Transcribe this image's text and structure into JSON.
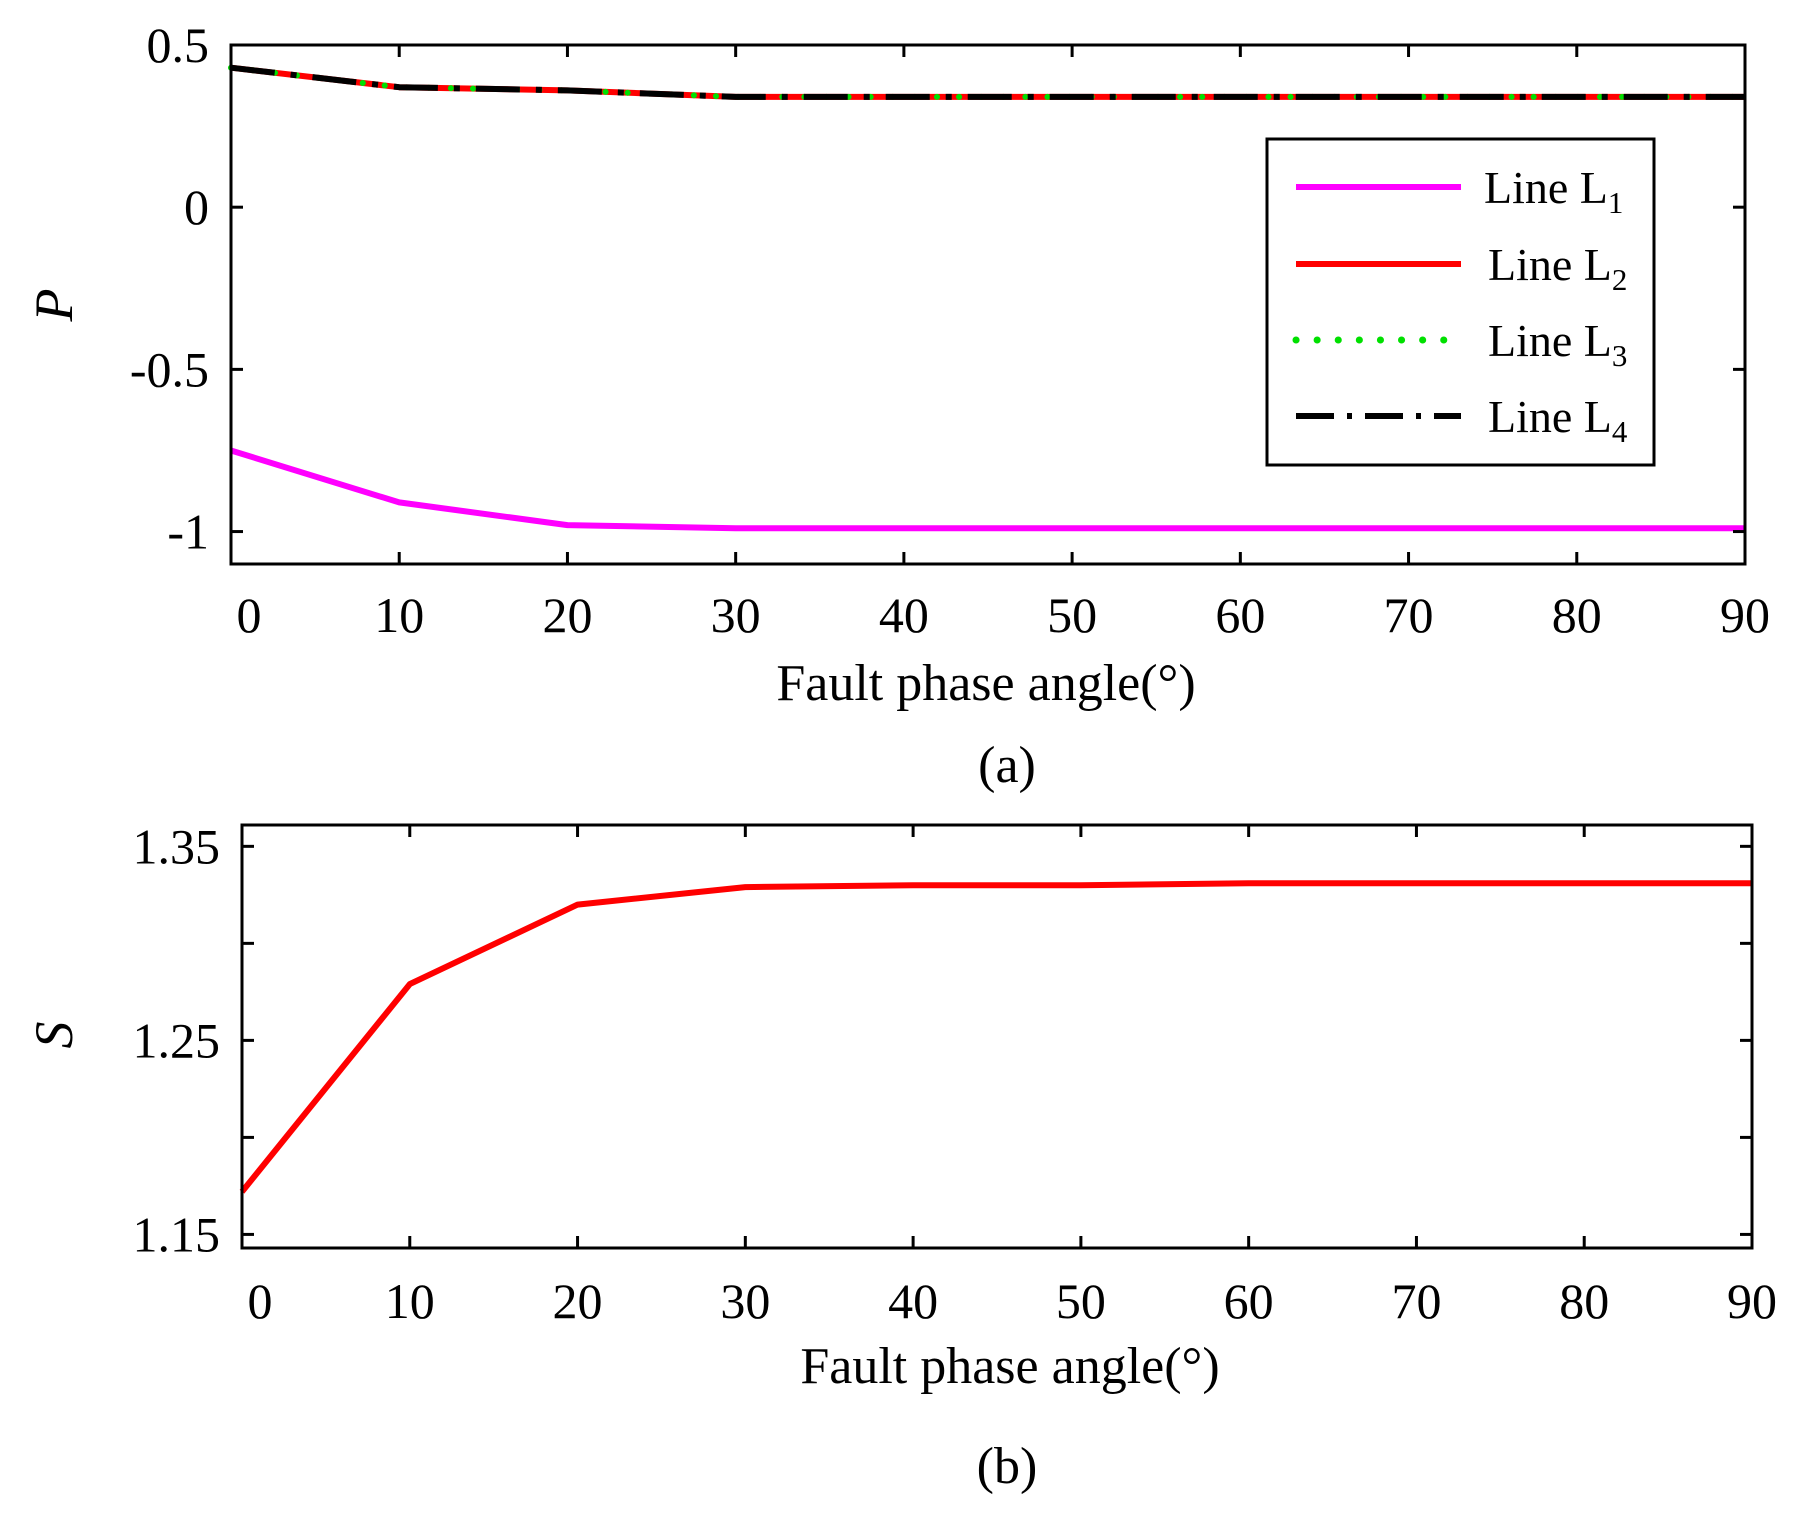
{
  "chart_data": [
    {
      "type": "line",
      "panel": "a",
      "caption": "(a)",
      "xlabel": "Fault phase angle(°)",
      "ylabel": "P",
      "xlim": [
        0,
        90
      ],
      "ylim": [
        -1.1,
        0.5
      ],
      "xticks": [
        0,
        10,
        20,
        30,
        40,
        50,
        60,
        70,
        80,
        90
      ],
      "yticks": [
        0.5,
        0,
        -0.5,
        -1
      ],
      "ytick_labels": [
        "0.5",
        "0",
        "-0.5",
        "-1"
      ],
      "grid": false,
      "legend_position": "right",
      "x": [
        0,
        10,
        20,
        30,
        40,
        50,
        60,
        70,
        80,
        90
      ],
      "series": [
        {
          "key": "L1",
          "name": "Line L",
          "sub": "1",
          "color": "#ff00ff",
          "style": "solid",
          "values": [
            -0.75,
            -0.91,
            -0.98,
            -0.99,
            -0.99,
            -0.99,
            -0.99,
            -0.99,
            -0.99,
            -0.99
          ]
        },
        {
          "key": "L2",
          "name": "Line L",
          "sub": "2",
          "color": "#ff0000",
          "style": "solid",
          "values": [
            0.43,
            0.37,
            0.36,
            0.34,
            0.34,
            0.34,
            0.34,
            0.34,
            0.34,
            0.34
          ]
        },
        {
          "key": "L3",
          "name": "Line L",
          "sub": "3",
          "color": "#00e000",
          "style": "dotted",
          "values": [
            0.43,
            0.37,
            0.36,
            0.34,
            0.34,
            0.34,
            0.34,
            0.34,
            0.34,
            0.34
          ]
        },
        {
          "key": "L4",
          "name": "Line L",
          "sub": "4",
          "color": "#000000",
          "style": "dashdot",
          "values": [
            0.43,
            0.37,
            0.36,
            0.34,
            0.34,
            0.34,
            0.34,
            0.34,
            0.34,
            0.34
          ]
        }
      ]
    },
    {
      "type": "line",
      "panel": "b",
      "caption": "(b)",
      "xlabel": "Fault phase angle(°)",
      "ylabel": "S",
      "xlim": [
        0,
        90
      ],
      "ylim": [
        1.143,
        1.361
      ],
      "xticks": [
        0,
        10,
        20,
        30,
        40,
        50,
        60,
        70,
        80,
        90
      ],
      "yticks": [
        1.35,
        1.3,
        1.25,
        1.2,
        1.15
      ],
      "ytick_labels": [
        "1.35",
        "",
        "1.25",
        "",
        "1.15"
      ],
      "grid": false,
      "x": [
        0,
        10,
        20,
        30,
        40,
        50,
        60,
        70,
        80,
        90
      ],
      "series": [
        {
          "key": "S",
          "name": "S",
          "color": "#ff0000",
          "style": "solid",
          "values": [
            1.172,
            1.279,
            1.32,
            1.329,
            1.33,
            1.33,
            1.331,
            1.331,
            1.331,
            1.331
          ]
        }
      ]
    }
  ]
}
